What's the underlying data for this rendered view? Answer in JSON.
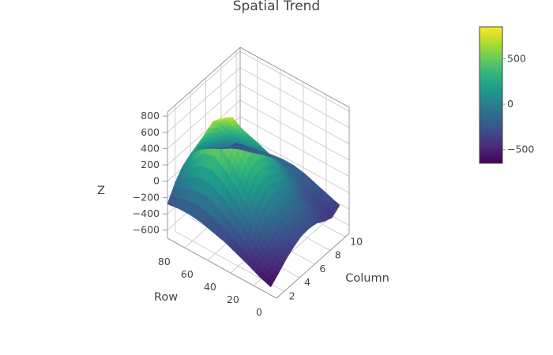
{
  "chart_data": {
    "type": "surface",
    "title": "Spatial Trend",
    "axes": {
      "x": {
        "label": "Column",
        "range": [
          1,
          10.5
        ],
        "ticks": [
          "2",
          "4",
          "6",
          "8",
          "10"
        ]
      },
      "y": {
        "label": "Row",
        "range": [
          0,
          95
        ],
        "ticks": [
          "0",
          "20",
          "40",
          "60",
          "80"
        ]
      },
      "z": {
        "label": "Z",
        "range": [
          -700,
          850
        ],
        "ticks": [
          "−600",
          "−400",
          "−200",
          "0",
          "200",
          "400",
          "600",
          "800"
        ]
      }
    },
    "colorscale": "Viridis",
    "colorbar": {
      "range": [
        -650,
        850
      ],
      "ticks": [
        "−500",
        "0",
        "500"
      ]
    },
    "surface": {
      "columns": [
        1,
        2,
        3,
        4,
        5,
        6,
        7,
        8,
        9,
        10
      ],
      "rows": [
        5,
        15,
        25,
        35,
        45,
        55,
        65,
        75,
        85,
        95
      ],
      "z": [
        [
          -600,
          -520,
          -430,
          -360,
          -310,
          -300,
          -320,
          -380,
          -420,
          -350
        ],
        [
          -550,
          -450,
          -330,
          -250,
          -200,
          -190,
          -210,
          -290,
          -360,
          -300
        ],
        [
          -480,
          -330,
          -180,
          -80,
          -40,
          -60,
          -110,
          -220,
          -300,
          -250
        ],
        [
          -420,
          -180,
          60,
          180,
          200,
          150,
          60,
          -80,
          -200,
          -200
        ],
        [
          -360,
          -60,
          260,
          420,
          430,
          340,
          200,
          40,
          -120,
          -170
        ],
        [
          -320,
          60,
          420,
          600,
          580,
          430,
          260,
          80,
          -80,
          -170
        ],
        [
          -280,
          130,
          540,
          760,
          680,
          470,
          280,
          60,
          -110,
          -190
        ],
        [
          -260,
          120,
          480,
          640,
          540,
          360,
          190,
          0,
          -160,
          -220
        ],
        [
          -260,
          40,
          260,
          350,
          290,
          170,
          60,
          -100,
          -200,
          -250
        ],
        [
          -280,
          -100,
          20,
          80,
          50,
          -20,
          -100,
          -190,
          -250,
          -280
        ]
      ]
    }
  }
}
